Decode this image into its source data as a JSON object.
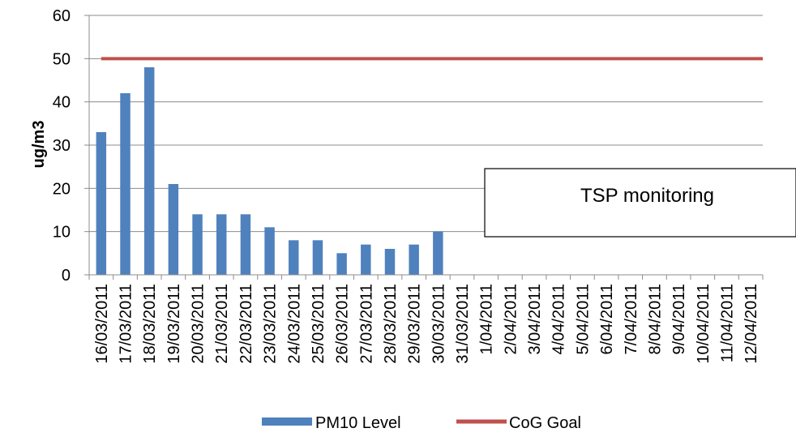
{
  "chart_data": {
    "type": "bar",
    "ylabel": "ug/m3",
    "ylim": [
      0,
      60
    ],
    "yticks": [
      "0",
      "10",
      "20",
      "30",
      "40",
      "50",
      "60"
    ],
    "grid": true,
    "legend_position": "bottom",
    "categories": [
      "16/03/2011",
      "17/03/2011",
      "18/03/2011",
      "19/03/2011",
      "20/03/2011",
      "21/03/2011",
      "22/03/2011",
      "23/03/2011",
      "24/03/2011",
      "25/03/2011",
      "26/03/2011",
      "27/03/2011",
      "28/03/2011",
      "29/03/2011",
      "30/03/2011",
      "31/03/2011",
      "1/04/2011",
      "2/04/2011",
      "3/04/2011",
      "4/04/2011",
      "5/04/2011",
      "6/04/2011",
      "7/04/2011",
      "8/04/2011",
      "9/04/2011",
      "10/04/2011",
      "11/04/2011",
      "12/04/2011"
    ],
    "series": [
      {
        "name": "PM10 Level",
        "type": "bar",
        "color": "#4F81BD",
        "values": [
          33,
          42,
          48,
          21,
          14,
          14,
          14,
          11,
          8,
          8,
          5,
          7,
          6,
          7,
          10,
          null,
          null,
          null,
          null,
          null,
          null,
          null,
          null,
          null,
          null,
          null,
          null,
          null
        ]
      },
      {
        "name": "CoG Goal",
        "type": "line",
        "color": "#C0504D",
        "values": [
          50,
          50,
          50,
          50,
          50,
          50,
          50,
          50,
          50,
          50,
          50,
          50,
          50,
          50,
          50,
          50,
          50,
          50,
          50,
          50,
          50,
          50,
          50,
          50,
          50,
          50,
          50,
          50
        ]
      }
    ],
    "annotation": "TSP monitoring"
  }
}
